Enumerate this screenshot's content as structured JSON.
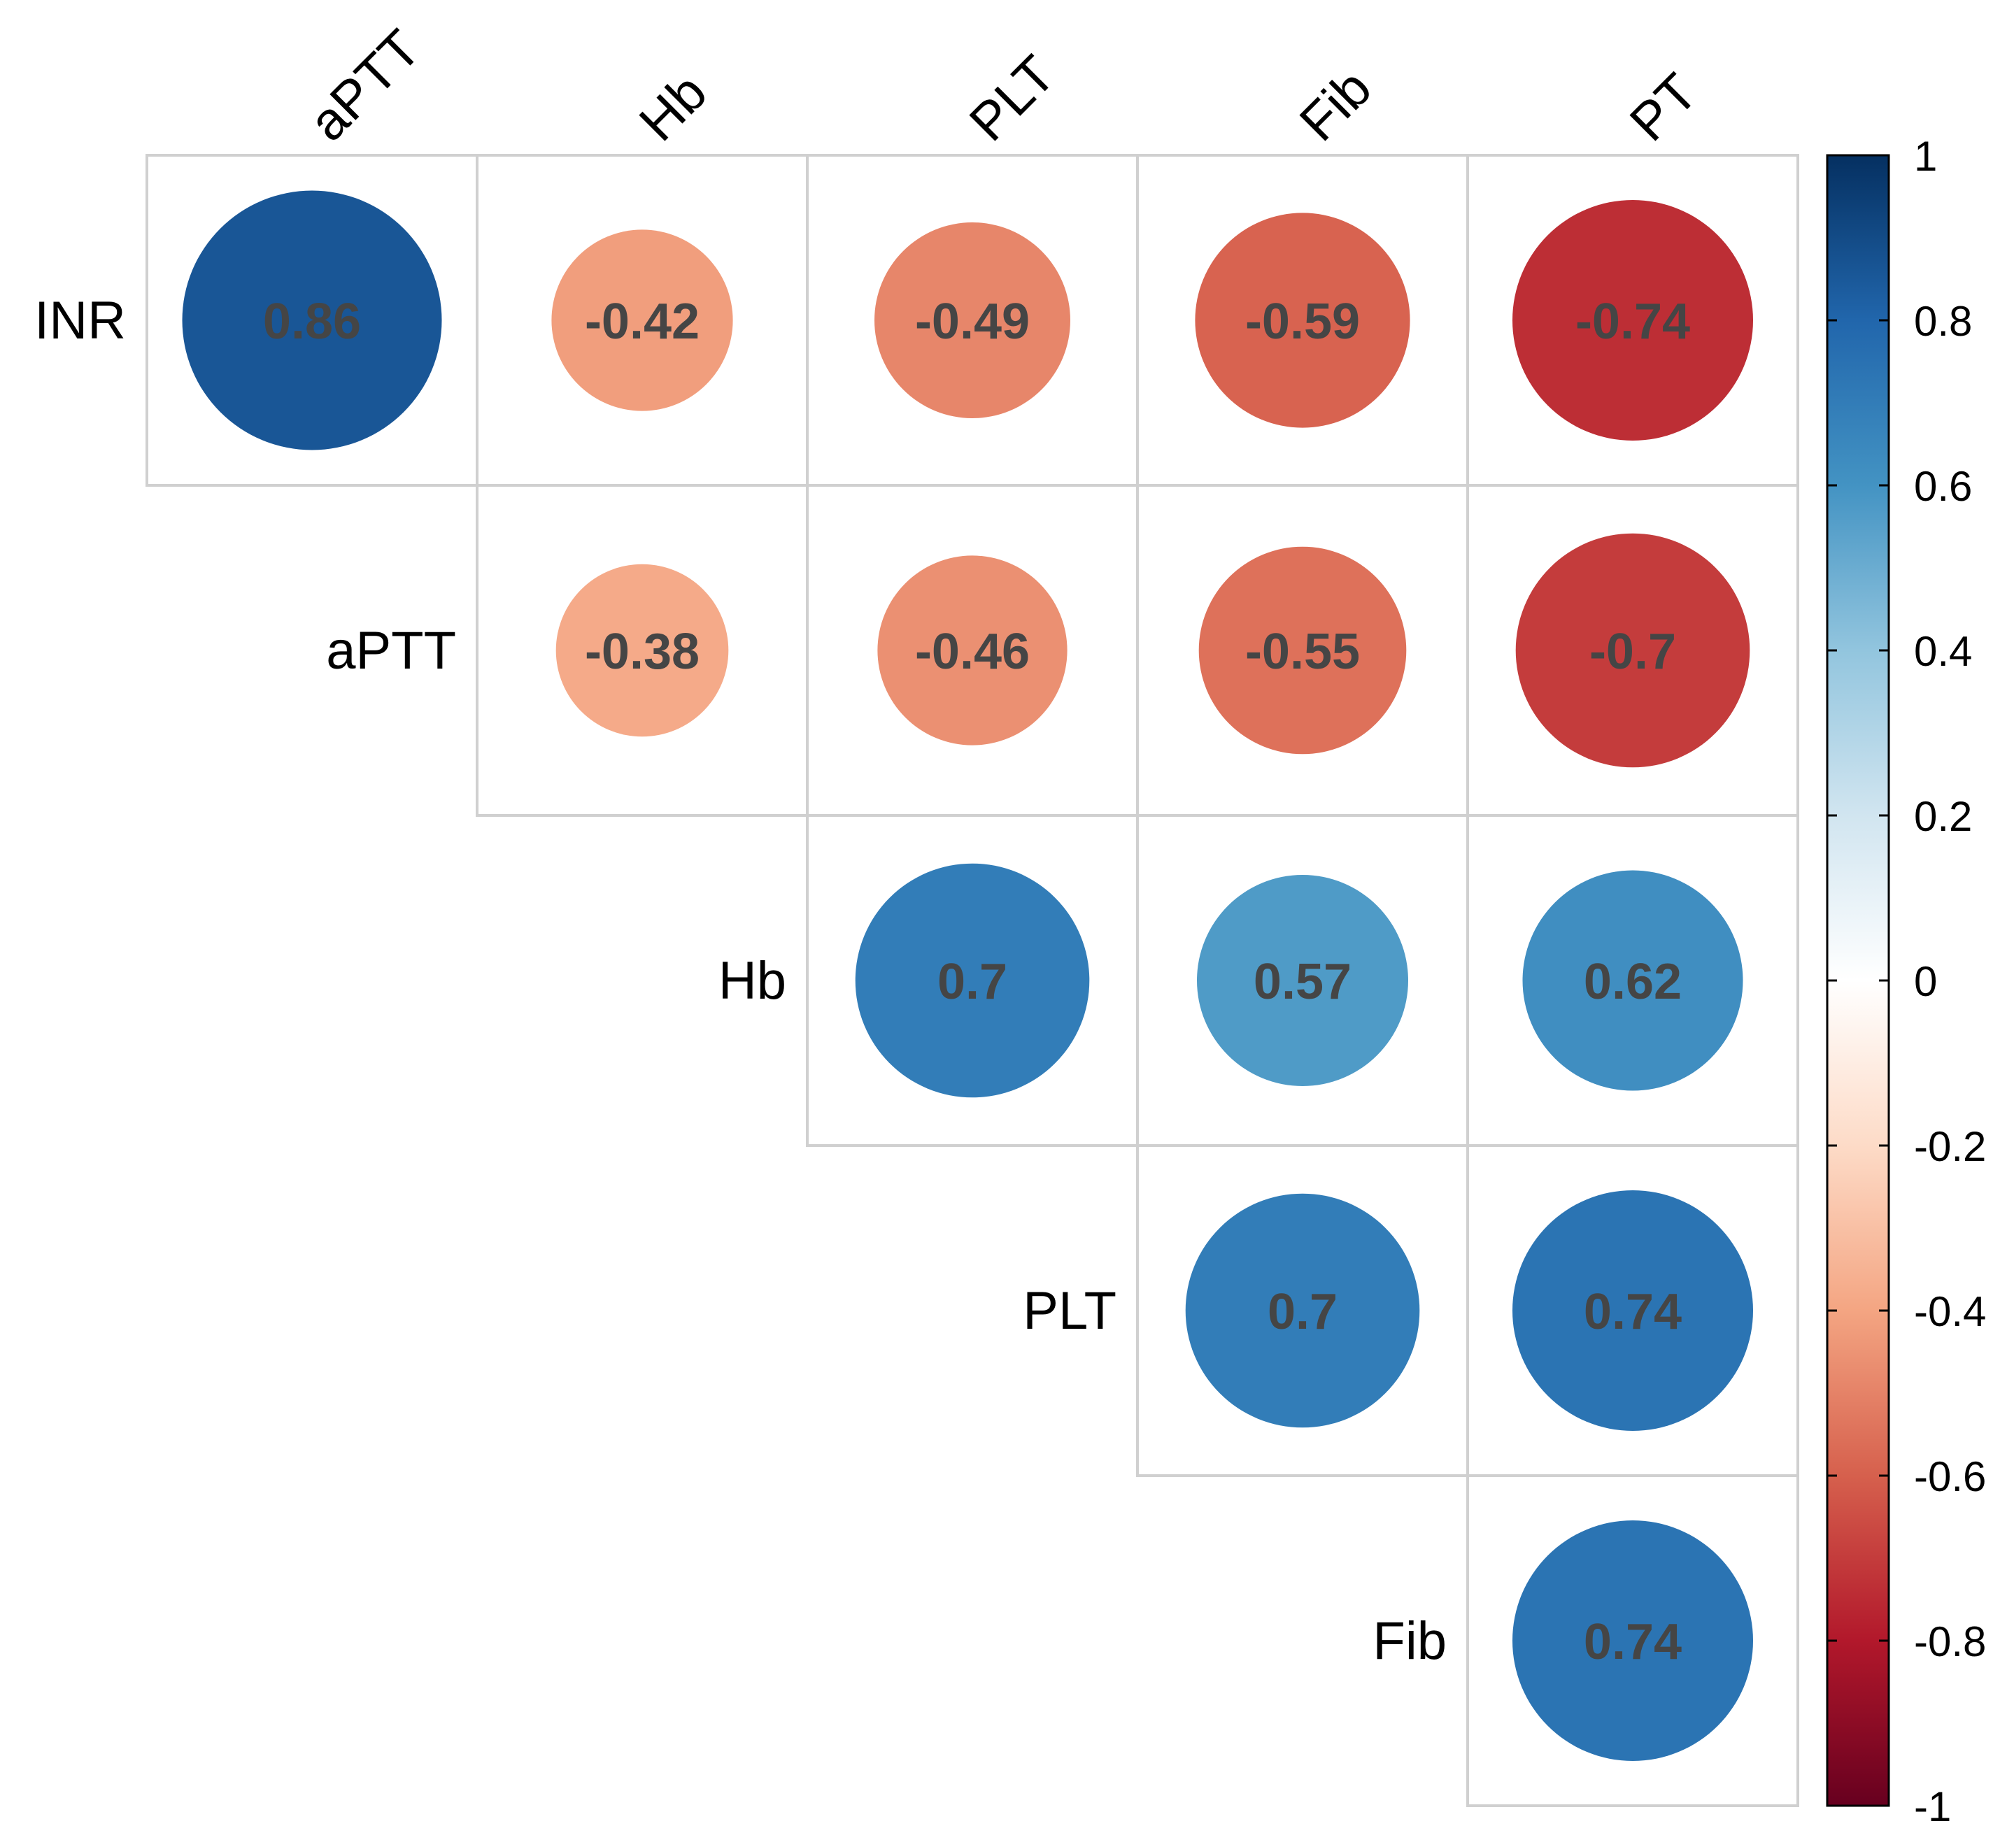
{
  "chart_data": {
    "type": "heatmap",
    "variant": "correlation-matrix-upper-circles",
    "row_labels": [
      "INR",
      "aPTT",
      "Hb",
      "PLT",
      "Fib"
    ],
    "col_labels": [
      "aPTT",
      "Hb",
      "PLT",
      "Fib",
      "PT"
    ],
    "cells": [
      {
        "row": "INR",
        "col": "aPTT",
        "value": 0.86,
        "label": "0.86"
      },
      {
        "row": "INR",
        "col": "Hb",
        "value": -0.42,
        "label": "-0.42"
      },
      {
        "row": "INR",
        "col": "PLT",
        "value": -0.49,
        "label": "-0.49"
      },
      {
        "row": "INR",
        "col": "Fib",
        "value": -0.59,
        "label": "-0.59"
      },
      {
        "row": "INR",
        "col": "PT",
        "value": -0.74,
        "label": "-0.74"
      },
      {
        "row": "aPTT",
        "col": "Hb",
        "value": -0.38,
        "label": "-0.38"
      },
      {
        "row": "aPTT",
        "col": "PLT",
        "value": -0.46,
        "label": "-0.46"
      },
      {
        "row": "aPTT",
        "col": "Fib",
        "value": -0.55,
        "label": "-0.55"
      },
      {
        "row": "aPTT",
        "col": "PT",
        "value": -0.7,
        "label": "-0.7"
      },
      {
        "row": "Hb",
        "col": "PLT",
        "value": 0.7,
        "label": "0.7"
      },
      {
        "row": "Hb",
        "col": "Fib",
        "value": 0.57,
        "label": "0.57"
      },
      {
        "row": "Hb",
        "col": "PT",
        "value": 0.62,
        "label": "0.62"
      },
      {
        "row": "PLT",
        "col": "Fib",
        "value": 0.7,
        "label": "0.7"
      },
      {
        "row": "PLT",
        "col": "PT",
        "value": 0.74,
        "label": "0.74"
      },
      {
        "row": "Fib",
        "col": "PT",
        "value": 0.74,
        "label": "0.74"
      }
    ],
    "colorbar": {
      "range": [
        -1,
        1
      ],
      "ticks": [
        1,
        0.8,
        0.6,
        0.4,
        0.2,
        0,
        -0.2,
        -0.4,
        -0.6,
        -0.8,
        -1
      ],
      "tick_labels": [
        "1",
        "0.8",
        "0.6",
        "0.4",
        "0.2",
        "0",
        "-0.2",
        "-0.4",
        "-0.6",
        "-0.8",
        "-1"
      ],
      "palette": [
        "#67001F",
        "#B2182B",
        "#D6604D",
        "#F4A582",
        "#FDDBC7",
        "#FFFFFF",
        "#D1E5F0",
        "#92C5DE",
        "#4393C3",
        "#2166AC",
        "#053061"
      ]
    },
    "title": "",
    "xlabel": "",
    "ylabel": ""
  }
}
